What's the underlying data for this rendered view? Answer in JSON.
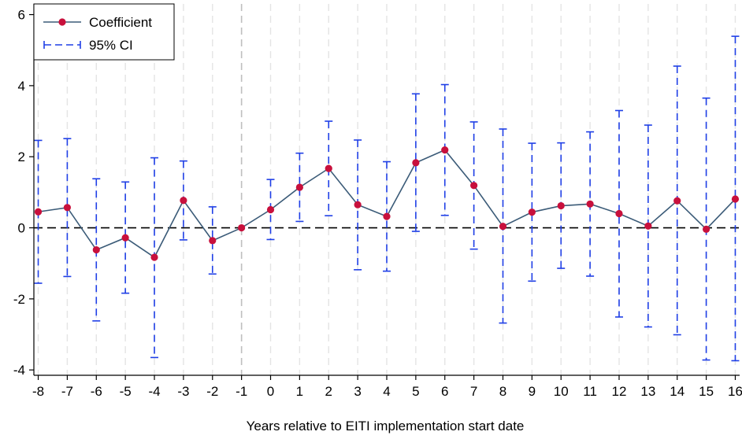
{
  "chart_data": {
    "type": "line",
    "title": "",
    "xlabel": "Years relative to EITI implementation start date",
    "ylabel": "",
    "x": [
      -8,
      -7,
      -6,
      -5,
      -4,
      -3,
      -2,
      -1,
      0,
      1,
      2,
      3,
      4,
      5,
      6,
      7,
      8,
      9,
      10,
      11,
      12,
      13,
      14,
      15,
      16
    ],
    "x_tick_labels": [
      "-8",
      "-7",
      "-6",
      "-5",
      "-4",
      "-3",
      "-2",
      "-1",
      "0",
      "1",
      "2",
      "3",
      "4",
      "5",
      "6",
      "7",
      "8",
      "9",
      "10",
      "11",
      "12",
      "13",
      "14",
      "15",
      "16"
    ],
    "y_ticks": [
      -4,
      -2,
      0,
      2,
      4,
      6
    ],
    "y_tick_labels": [
      "-4",
      "-2",
      "0",
      "2",
      "4",
      "6"
    ],
    "xlim": [
      -8.15,
      16.15
    ],
    "ylim": [
      -4.15,
      6.3
    ],
    "reference_x": -1,
    "reference_y": 0,
    "series": [
      {
        "name": "Coefficient",
        "type": "line-with-markers",
        "values": [
          0.45,
          0.57,
          -0.62,
          -0.28,
          -0.83,
          0.77,
          -0.36,
          0.0,
          0.51,
          1.14,
          1.67,
          0.65,
          0.32,
          1.83,
          2.19,
          1.19,
          0.04,
          0.44,
          0.62,
          0.67,
          0.4,
          0.05,
          0.76,
          -0.04,
          0.81
        ]
      },
      {
        "name": "95% CI",
        "type": "error-bars",
        "lower": [
          -1.56,
          -1.37,
          -2.62,
          -1.84,
          -3.65,
          -0.34,
          -1.3,
          0.0,
          -0.33,
          0.18,
          0.34,
          -1.18,
          -1.22,
          -0.1,
          0.35,
          -0.6,
          -2.68,
          -1.5,
          -1.14,
          -1.36,
          -2.51,
          -2.79,
          -3.01,
          -3.72,
          -3.74
        ],
        "upper": [
          2.46,
          2.51,
          1.38,
          1.29,
          1.97,
          1.88,
          0.59,
          0.0,
          1.36,
          2.1,
          3.0,
          2.47,
          1.86,
          3.77,
          4.03,
          2.98,
          2.78,
          2.38,
          2.39,
          2.7,
          3.3,
          2.89,
          4.55,
          3.65,
          5.39
        ]
      }
    ],
    "legend": {
      "position": "top-left",
      "entries": [
        "Coefficient",
        "95% CI"
      ]
    },
    "grid": {
      "vertical": true,
      "horizontal": false
    },
    "colors": {
      "line": "#3b5b78",
      "marker": "#c8103c",
      "ci": "#1f3fe6",
      "reference": "#000000",
      "vline": "#bfbfbf",
      "grid": "#e4e4e4"
    }
  }
}
